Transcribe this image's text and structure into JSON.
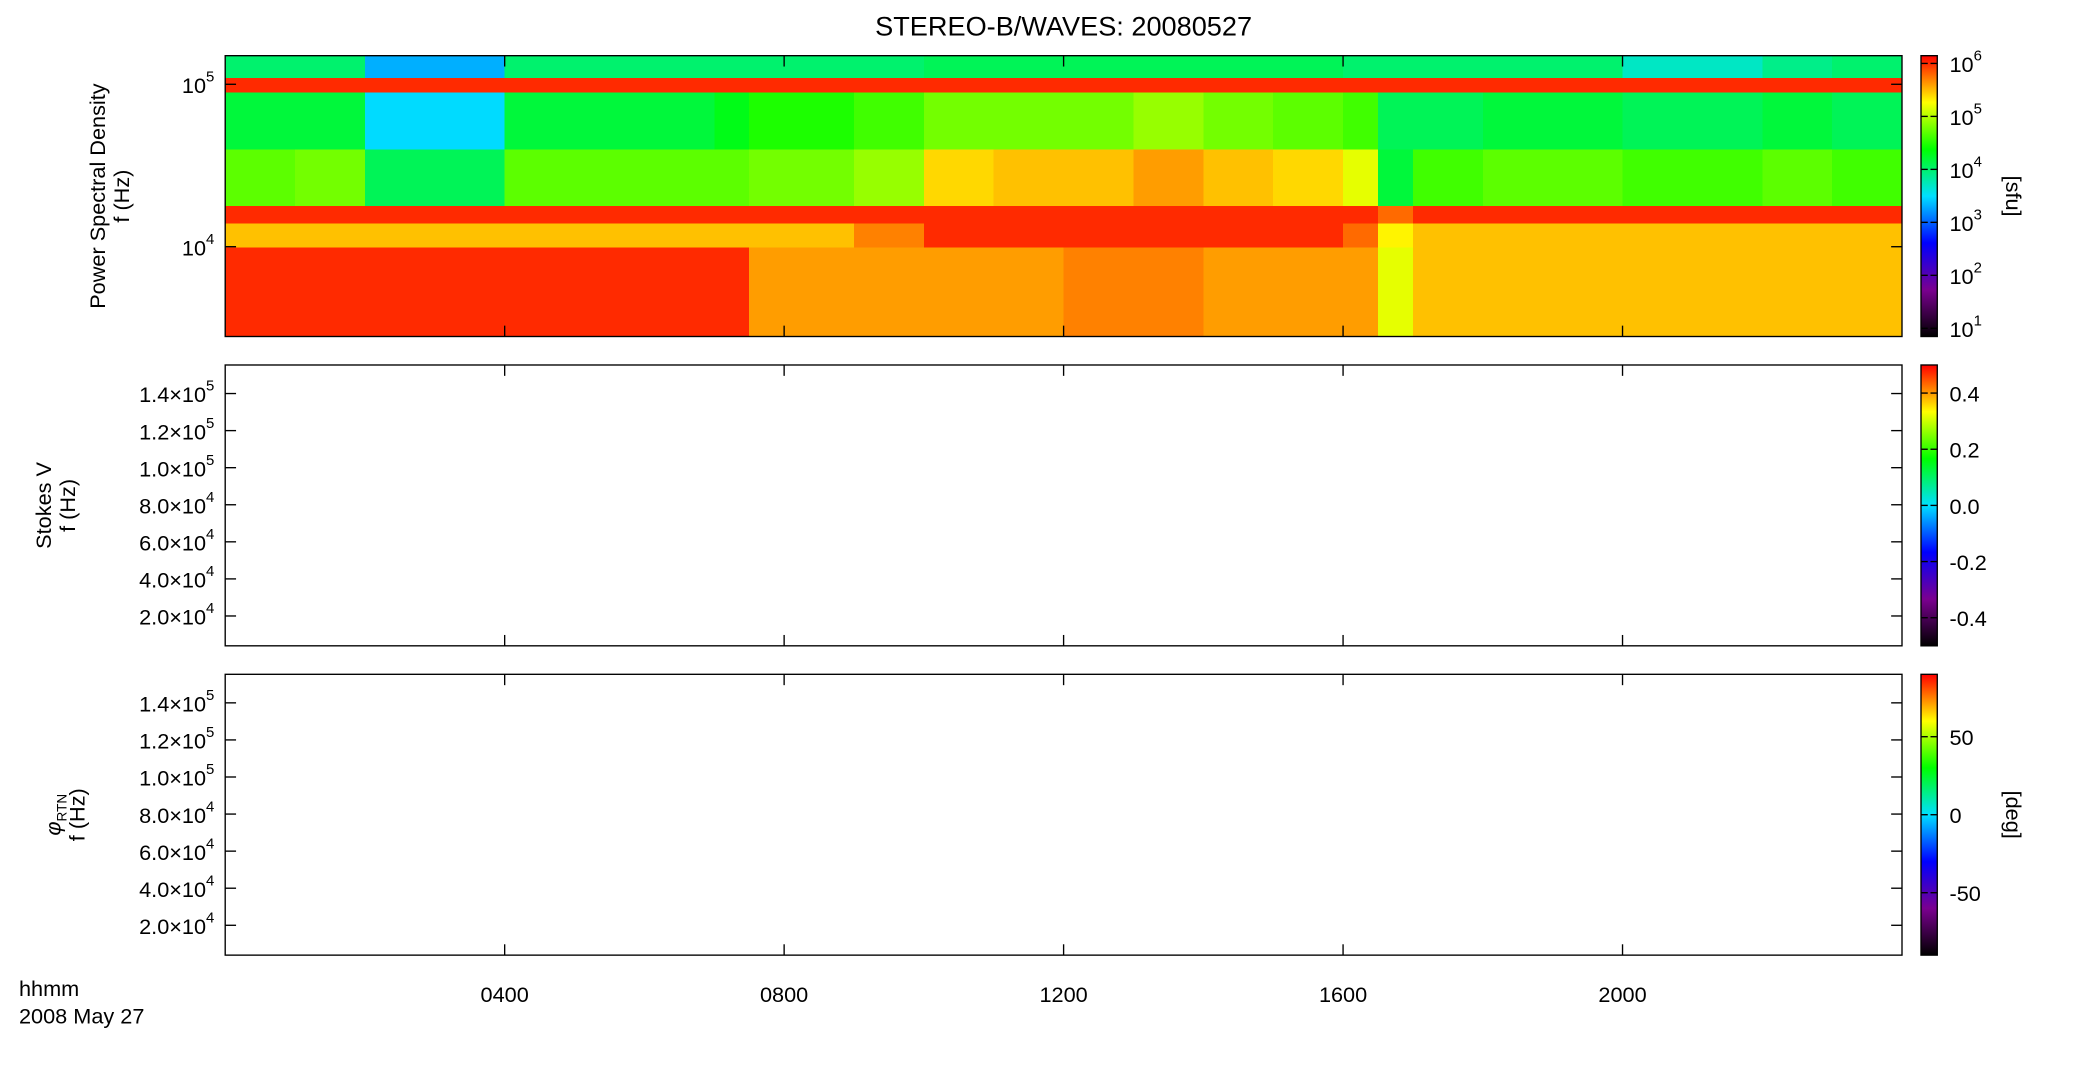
{
  "chart_data": [
    {
      "type": "heatmap",
      "title": "STEREO-B/WAVES: 20080527",
      "ylabel": "Power Spectral Density",
      "ylabel2": "f (Hz)",
      "yscale": "log",
      "ylim": [
        2800,
        150000
      ],
      "yticks": [
        {
          "value": 10000,
          "label": "10",
          "sup": "4"
        },
        {
          "value": 100000,
          "label": "10",
          "sup": "5"
        }
      ],
      "xlim": [
        0,
        24
      ],
      "x_bins": [
        0,
        1,
        2,
        3,
        4,
        5,
        6,
        7,
        7.5,
        8,
        9,
        10,
        11,
        12,
        13,
        14,
        15,
        16,
        16.5,
        17,
        18,
        19,
        20,
        21,
        22,
        23,
        24
      ],
      "y_bins": [
        2800,
        10000,
        14000,
        18000,
        40000,
        90000,
        110000,
        150000
      ],
      "z": [
        [
          1000000,
          1000000,
          1000000,
          1000000,
          1000000,
          1000000,
          1000000,
          1000000,
          400000,
          400000,
          400000,
          400000,
          400000,
          500000,
          500000,
          400000,
          400000,
          400000,
          150000,
          300000,
          300000,
          300000,
          300000,
          300000,
          300000,
          300000
        ],
        [
          300000,
          300000,
          300000,
          300000,
          300000,
          300000,
          300000,
          300000,
          300000,
          300000,
          500000,
          1000000,
          1000000,
          1000000,
          1000000,
          1000000,
          1000000,
          600000,
          200000,
          300000,
          300000,
          300000,
          300000,
          300000,
          300000,
          300000
        ],
        [
          1000000,
          1000000,
          1000000,
          1000000,
          1000000,
          1000000,
          1000000,
          1000000,
          1000000,
          1000000,
          1000000,
          1000000,
          1000000,
          1000000,
          1000000,
          1000000,
          1000000,
          1000000,
          600000,
          1000000,
          1000000,
          1000000,
          1000000,
          1000000,
          1000000,
          1000000
        ],
        [
          50000,
          60000,
          12000,
          12000,
          50000,
          50000,
          50000,
          50000,
          60000,
          60000,
          80000,
          250000,
          300000,
          300000,
          400000,
          300000,
          250000,
          150000,
          15000,
          40000,
          50000,
          50000,
          40000,
          40000,
          50000,
          40000
        ],
        [
          15000,
          15000,
          3000,
          3000,
          15000,
          15000,
          15000,
          20000,
          30000,
          30000,
          40000,
          60000,
          60000,
          60000,
          80000,
          60000,
          50000,
          40000,
          12000,
          12000,
          15000,
          15000,
          12000,
          12000,
          15000,
          12000
        ],
        [
          1000000,
          1000000,
          1000000,
          1000000,
          1000000,
          1000000,
          1000000,
          1000000,
          1000000,
          1000000,
          1000000,
          1000000,
          1000000,
          1000000,
          1000000,
          1000000,
          1000000,
          1000000,
          1000000,
          1000000,
          1000000,
          1000000,
          1000000,
          1000000,
          1000000,
          1000000
        ],
        [
          10000,
          10000,
          2000,
          2000,
          10000,
          10000,
          10000,
          10000,
          10000,
          10000,
          10000,
          12000,
          12000,
          12000,
          12000,
          12000,
          12000,
          10000,
          10000,
          10000,
          10000,
          10000,
          5000,
          5000,
          8000,
          10000
        ]
      ],
      "colormap": [
        "#000000",
        "#7a0090",
        "#0000ff",
        "#00e0ff",
        "#00ff00",
        "#ffff00",
        "#ff0000"
      ],
      "cscale": "log",
      "clim": [
        7,
        1400000
      ],
      "cticks": [
        {
          "value": 10,
          "label": "10",
          "sup": "1"
        },
        {
          "value": 100,
          "label": "10",
          "sup": "2"
        },
        {
          "value": 1000,
          "label": "10",
          "sup": "3"
        },
        {
          "value": 10000,
          "label": "10",
          "sup": "4"
        },
        {
          "value": 100000,
          "label": "10",
          "sup": "5"
        },
        {
          "value": 1000000,
          "label": "10",
          "sup": "6"
        }
      ],
      "clabel": "[sfu]"
    },
    {
      "type": "heatmap",
      "ylabel": "Stokes V",
      "ylabel2": "f (Hz)",
      "yscale": "linear",
      "ylim": [
        3900,
        155400
      ],
      "yticks": [
        {
          "value": 20000,
          "label": "2.0×10",
          "sup": "4"
        },
        {
          "value": 40000,
          "label": "4.0×10",
          "sup": "4"
        },
        {
          "value": 60000,
          "label": "6.0×10",
          "sup": "4"
        },
        {
          "value": 80000,
          "label": "8.0×10",
          "sup": "4"
        },
        {
          "value": 100000,
          "label": "1.0×10",
          "sup": "5"
        },
        {
          "value": 120000,
          "label": "1.2×10",
          "sup": "5"
        },
        {
          "value": 140000,
          "label": "1.4×10",
          "sup": "5"
        }
      ],
      "xlim": [
        0,
        24
      ],
      "colormap": [
        "#000000",
        "#7a0090",
        "#0000ff",
        "#00e0ff",
        "#00ff00",
        "#ffff00",
        "#ff0000"
      ],
      "cscale": "linear",
      "clim": [
        -0.5,
        0.5
      ],
      "cticks": [
        -0.4,
        -0.2,
        {
          "value": 0,
          "label": "0.0"
        },
        0.2,
        0.4
      ]
    },
    {
      "type": "heatmap",
      "ylabel": "φ",
      "ylabel_sub": "RTN",
      "ylabel2": "f (Hz)",
      "yscale": "linear",
      "ylim": [
        3900,
        155400
      ],
      "yticks": [
        {
          "value": 20000,
          "label": "2.0×10",
          "sup": "4"
        },
        {
          "value": 40000,
          "label": "4.0×10",
          "sup": "4"
        },
        {
          "value": 60000,
          "label": "6.0×10",
          "sup": "4"
        },
        {
          "value": 80000,
          "label": "8.0×10",
          "sup": "4"
        },
        {
          "value": 100000,
          "label": "1.0×10",
          "sup": "5"
        },
        {
          "value": 120000,
          "label": "1.2×10",
          "sup": "5"
        },
        {
          "value": 140000,
          "label": "1.4×10",
          "sup": "5"
        }
      ],
      "xlim": [
        0,
        24
      ],
      "xticks": [
        {
          "value": 4,
          "label": "0400"
        },
        {
          "value": 8,
          "label": "0800"
        },
        {
          "value": 12,
          "label": "1200"
        },
        {
          "value": 16,
          "label": "1600"
        },
        {
          "value": 20,
          "label": "2000"
        }
      ],
      "xlabel": "hhmm",
      "xlabel2": "2008 May 27",
      "colormap": [
        "#000000",
        "#7a0090",
        "#0000ff",
        "#00e0ff",
        "#00ff00",
        "#ffff00",
        "#ff0000"
      ],
      "cscale": "linear",
      "clim": [
        -90,
        90
      ],
      "cticks": [
        -50,
        0,
        50
      ],
      "clabel": "[deg]"
    }
  ]
}
